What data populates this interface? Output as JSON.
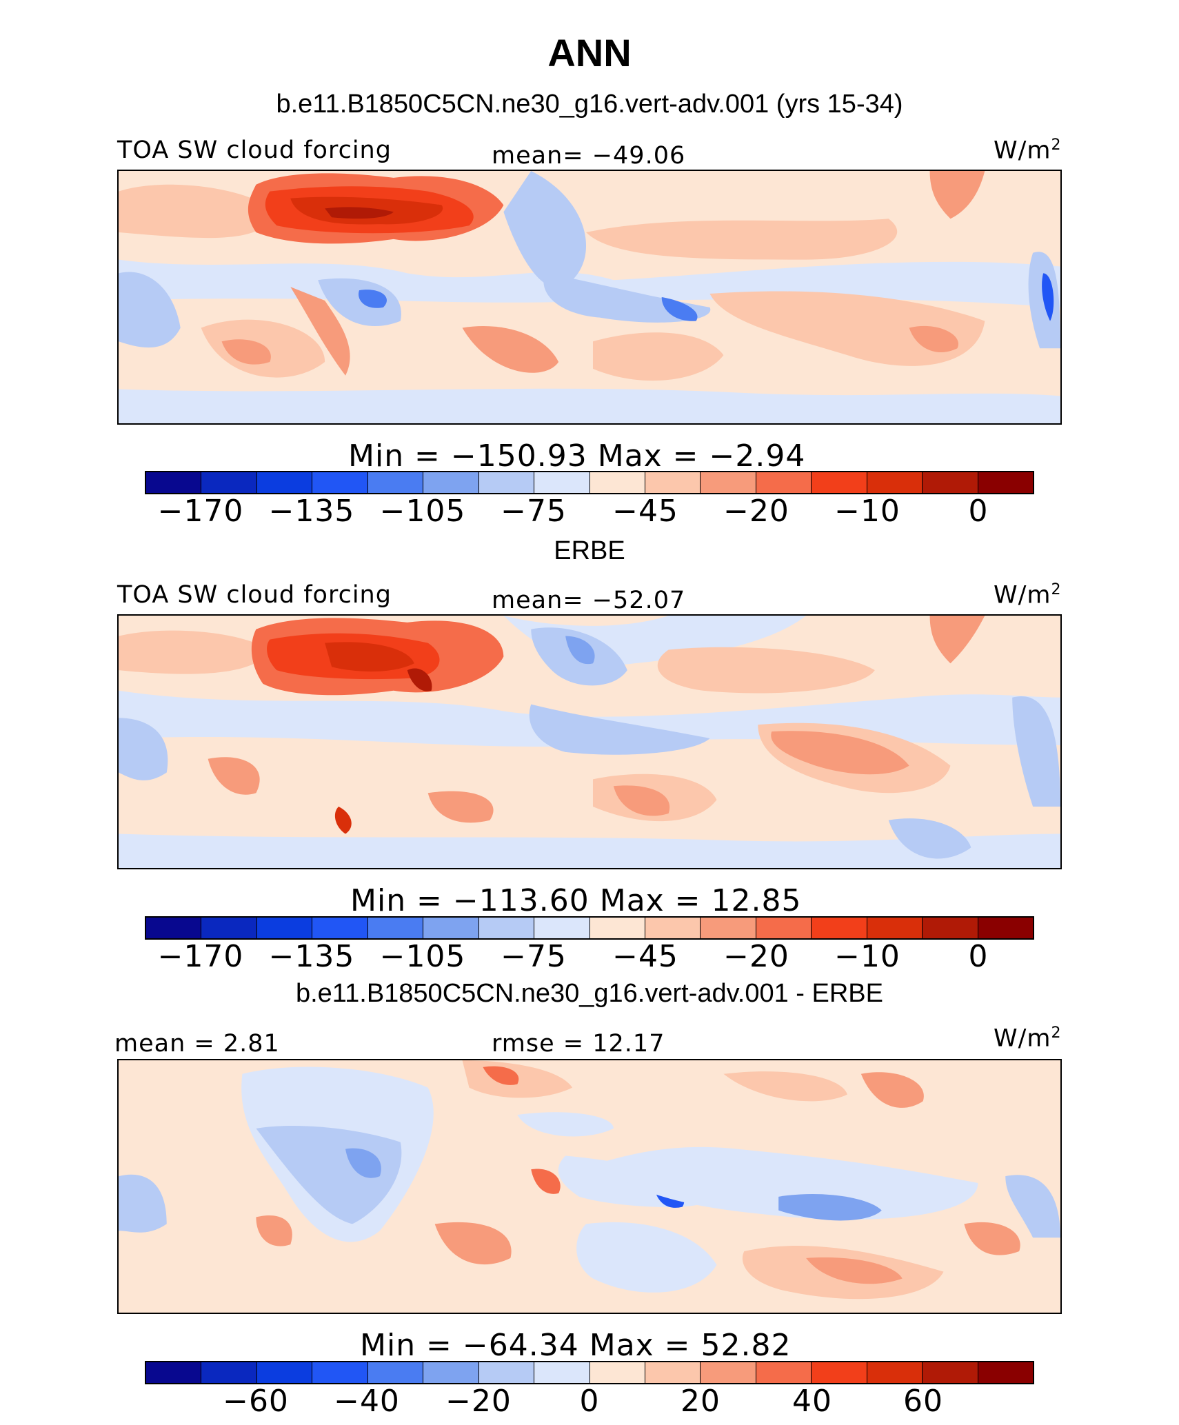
{
  "title": "ANN",
  "units_base": "W/m",
  "units_sup": "2",
  "panels": [
    {
      "heading": "b.e11.B1850C5CN.ne30_g16.vert-adv.001 (yrs 15-34)",
      "left_label": "TOA SW cloud forcing",
      "center_label": "mean= −49.06",
      "minmax": "Min = −150.93 Max = −2.94",
      "colorbar_ticks": [
        "−170",
        "−135",
        "−105",
        "−75",
        "−45",
        "−20",
        "−10",
        "0"
      ]
    },
    {
      "heading": "ERBE",
      "left_label": "TOA SW cloud forcing",
      "center_label": "mean= −52.07",
      "minmax": "Min = −113.60 Max = 12.85",
      "colorbar_ticks": [
        "−170",
        "−135",
        "−105",
        "−75",
        "−45",
        "−20",
        "−10",
        "0"
      ]
    },
    {
      "heading": "b.e11.B1850C5CN.ne30_g16.vert-adv.001 - ERBE",
      "left_label": "mean = 2.81",
      "center_label": "rmse = 12.17",
      "minmax": "Min = −64.34 Max = 52.82",
      "colorbar_ticks": [
        "−60",
        "−40",
        "−20",
        "0",
        "20",
        "40",
        "60"
      ]
    }
  ],
  "colormap": [
    "#08088f",
    "#0a28bf",
    "#0b3de0",
    "#2156f5",
    "#4a7cf2",
    "#7ea3f0",
    "#b6cbf5",
    "#dbe6fb",
    "#fde6d4",
    "#fcc7ac",
    "#f79b7b",
    "#f56c4a",
    "#f23f1a",
    "#d92f0a",
    "#b01a06",
    "#8a0000"
  ]
}
